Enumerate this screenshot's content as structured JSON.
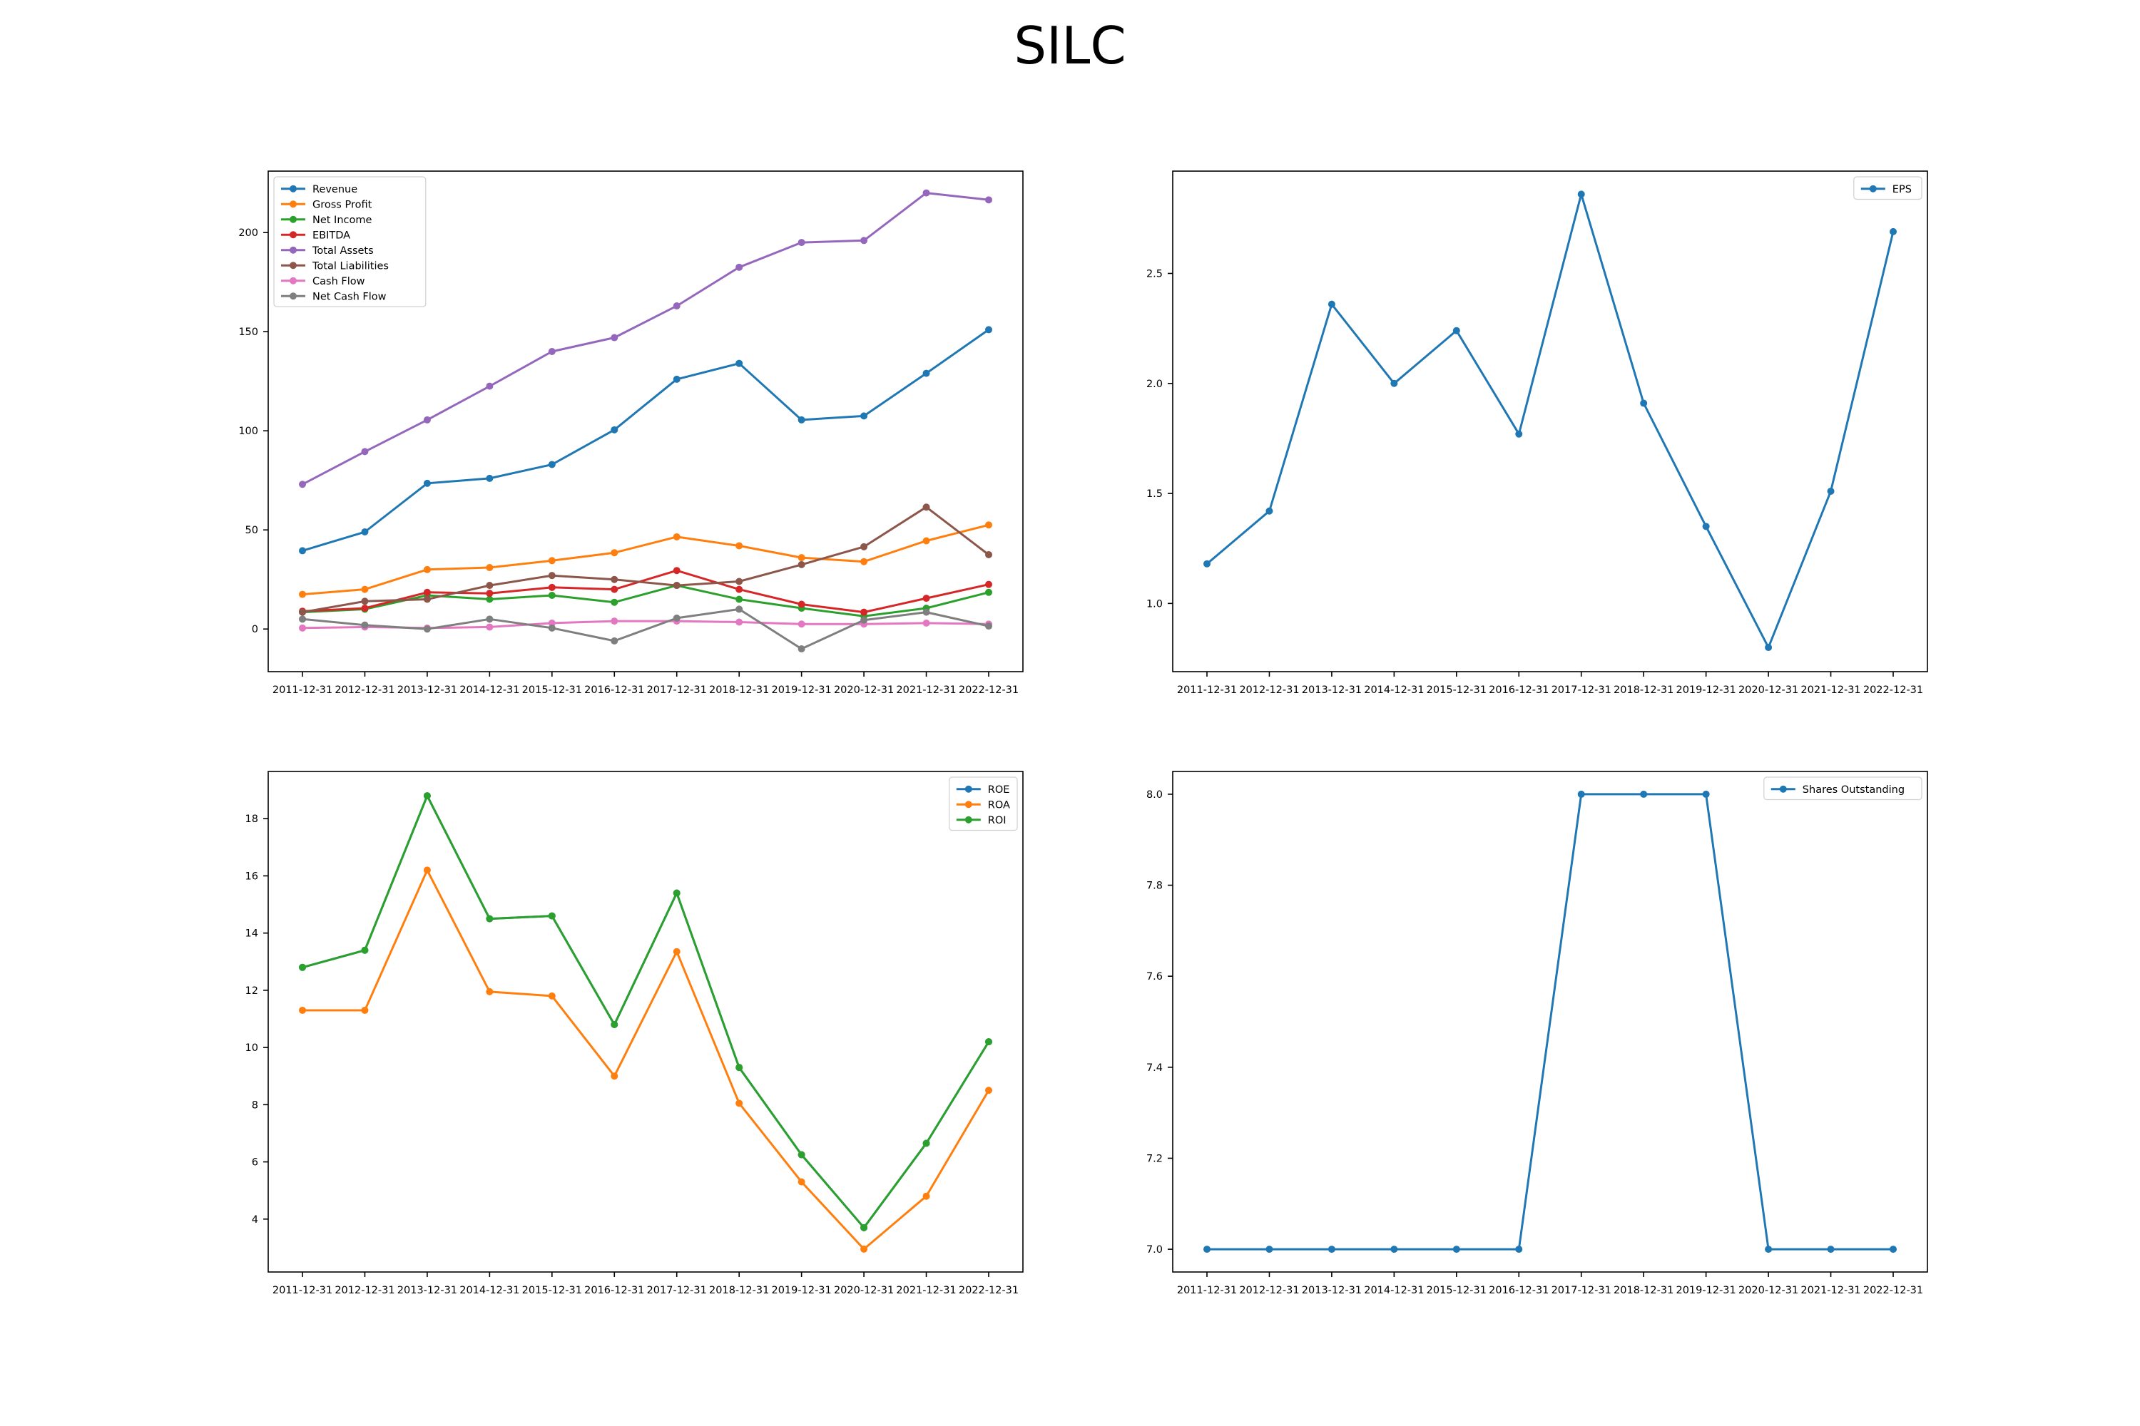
{
  "title": "SILC",
  "chart_data": [
    {
      "type": "line",
      "categories": [
        "2011-12-31",
        "2012-12-31",
        "2013-12-31",
        "2014-12-31",
        "2015-12-31",
        "2016-12-31",
        "2017-12-31",
        "2018-12-31",
        "2019-12-31",
        "2020-12-31",
        "2021-12-31",
        "2022-12-31"
      ],
      "ylim": [
        -21.5,
        231
      ],
      "yticks": [
        0,
        50,
        100,
        150,
        200
      ],
      "grid": false,
      "legend": "top-left",
      "series": [
        {
          "name": "Revenue",
          "color": "#1f77b4",
          "values": [
            39.5,
            49,
            73.5,
            76,
            83,
            100.5,
            126,
            134,
            105.5,
            107.5,
            129,
            151
          ]
        },
        {
          "name": "Gross Profit",
          "color": "#ff7f0e",
          "values": [
            17.5,
            20,
            30,
            31,
            34.5,
            38.5,
            46.5,
            42,
            36,
            34,
            44.5,
            52.5
          ]
        },
        {
          "name": "Net Income",
          "color": "#2ca02c",
          "values": [
            8.5,
            10,
            17,
            15,
            17,
            13.5,
            22,
            15,
            10.5,
            6.5,
            10.5,
            18.5
          ]
        },
        {
          "name": "EBITDA",
          "color": "#d62728",
          "values": [
            9,
            10.5,
            18.5,
            18,
            21,
            20,
            29.5,
            20,
            12.5,
            8.5,
            15.5,
            22.5
          ]
        },
        {
          "name": "Total Assets",
          "color": "#9467bd",
          "values": [
            73,
            89.5,
            105.5,
            122.5,
            140,
            147,
            163,
            182.5,
            195,
            196,
            220,
            216.5
          ]
        },
        {
          "name": "Total Liabilities",
          "color": "#8c564b",
          "values": [
            8.5,
            14,
            15,
            22,
            27,
            25,
            22,
            24,
            32.5,
            41.5,
            61.5,
            37.5
          ]
        },
        {
          "name": "Cash Flow",
          "color": "#e377c2",
          "values": [
            0.5,
            1,
            0.5,
            1,
            3,
            4,
            4,
            3.5,
            2.5,
            2.5,
            3,
            2.5
          ]
        },
        {
          "name": "Net Cash Flow",
          "color": "#7f7f7f",
          "values": [
            5,
            2,
            0,
            5,
            0.5,
            -6,
            5.5,
            10,
            -10,
            4.5,
            8.5,
            1.5
          ]
        }
      ]
    },
    {
      "type": "line",
      "categories": [
        "2011-12-31",
        "2012-12-31",
        "2013-12-31",
        "2014-12-31",
        "2015-12-31",
        "2016-12-31",
        "2017-12-31",
        "2018-12-31",
        "2019-12-31",
        "2020-12-31",
        "2021-12-31",
        "2022-12-31"
      ],
      "ylim": [
        0.69,
        2.965
      ],
      "yticks": [
        1.0,
        1.5,
        2.0,
        2.5
      ],
      "grid": false,
      "legend": "top-right",
      "series": [
        {
          "name": "EPS",
          "color": "#1f77b4",
          "values": [
            1.18,
            1.42,
            2.36,
            2.0,
            2.24,
            1.77,
            2.86,
            1.91,
            1.35,
            0.8,
            1.51,
            2.69
          ]
        }
      ]
    },
    {
      "type": "line",
      "categories": [
        "2011-12-31",
        "2012-12-31",
        "2013-12-31",
        "2014-12-31",
        "2015-12-31",
        "2016-12-31",
        "2017-12-31",
        "2018-12-31",
        "2019-12-31",
        "2020-12-31",
        "2021-12-31",
        "2022-12-31"
      ],
      "ylim": [
        2.15,
        19.65
      ],
      "yticks": [
        4,
        6,
        8,
        10,
        12,
        14,
        16,
        18
      ],
      "grid": false,
      "legend": "top-right",
      "series": [
        {
          "name": "ROE",
          "color": "#1f77b4",
          "values": [
            12.8,
            13.4,
            18.8,
            14.5,
            14.6,
            10.8,
            15.4,
            9.3,
            6.25,
            3.7,
            6.65,
            10.2
          ]
        },
        {
          "name": "ROA",
          "color": "#ff7f0e",
          "values": [
            11.3,
            11.3,
            16.2,
            11.95,
            11.8,
            9.0,
            13.35,
            8.05,
            5.3,
            2.95,
            4.8,
            8.5
          ]
        },
        {
          "name": "ROI",
          "color": "#2ca02c",
          "values": [
            12.8,
            13.4,
            18.8,
            14.5,
            14.6,
            10.8,
            15.4,
            9.3,
            6.25,
            3.7,
            6.65,
            10.2
          ]
        }
      ]
    },
    {
      "type": "line",
      "categories": [
        "2011-12-31",
        "2012-12-31",
        "2013-12-31",
        "2014-12-31",
        "2015-12-31",
        "2016-12-31",
        "2017-12-31",
        "2018-12-31",
        "2019-12-31",
        "2020-12-31",
        "2021-12-31",
        "2022-12-31"
      ],
      "ylim": [
        6.95,
        8.05
      ],
      "yticks": [
        7.0,
        7.2,
        7.4,
        7.6,
        7.8,
        8.0
      ],
      "grid": false,
      "legend": "top-right",
      "series": [
        {
          "name": "Shares Outstanding",
          "color": "#1f77b4",
          "values": [
            7,
            7,
            7,
            7,
            7,
            7,
            8,
            8,
            8,
            7,
            7,
            7
          ]
        }
      ]
    }
  ]
}
